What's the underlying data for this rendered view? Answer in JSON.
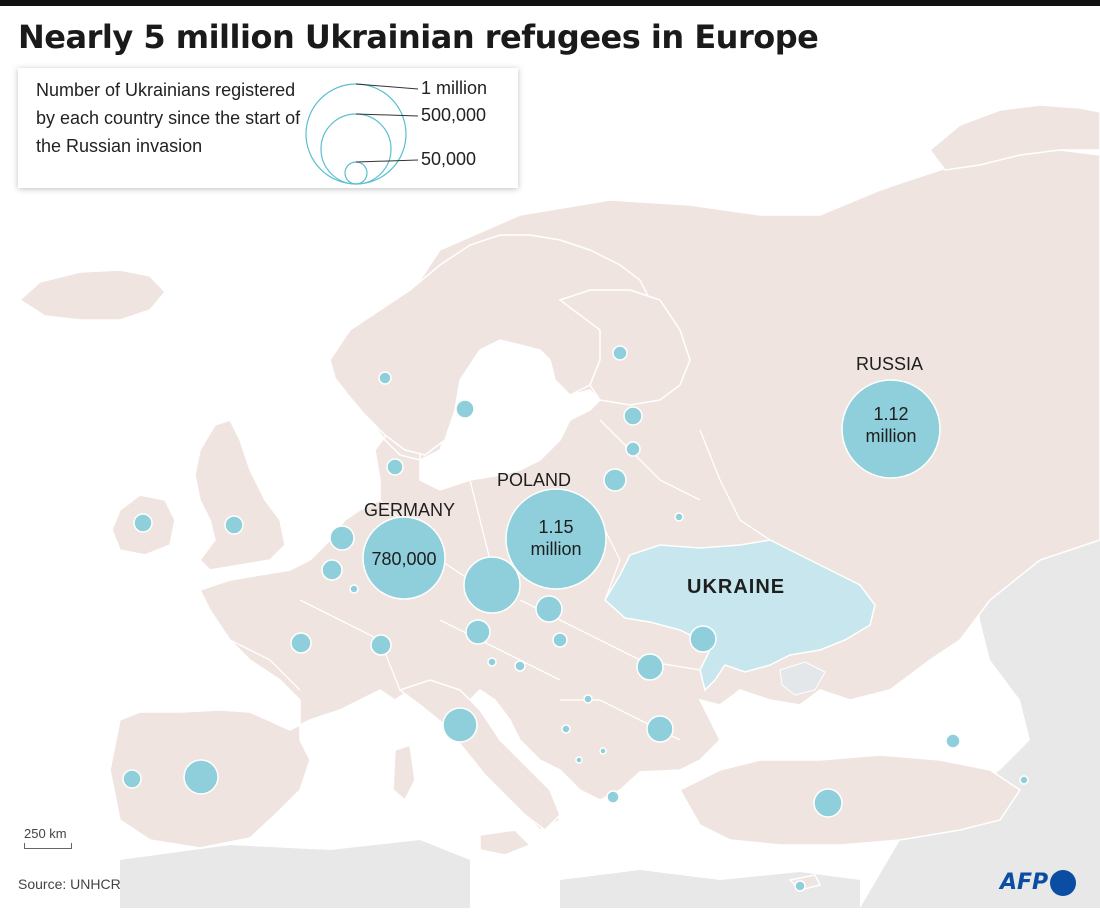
{
  "title": "Nearly 5 million Ukrainian refugees in Europe",
  "legend": {
    "description": "Number of Ukrainians registered by each country since the start of the Russian invasion",
    "sizes": [
      "1 million",
      "500,000",
      "50,000"
    ]
  },
  "labels": {
    "russia": "RUSSIA",
    "russia_value": "1.12 million",
    "poland": "POLAND",
    "poland_value": "1.15 million",
    "germany": "GERMANY",
    "germany_value": "780,000",
    "ukraine": "UKRAINE"
  },
  "scale": "250 km",
  "source": "Source: UNHCR",
  "logo": "AFP",
  "colors": {
    "land": "#efe4df",
    "land_border": "#ffffff",
    "non_europe_land": "#e8e8e8",
    "ukraine": "#c7e6ee",
    "bubble": "#8fcfdb",
    "bubble_stroke": "#ffffff",
    "sea": "#ffffff",
    "logo_blue": "#0a4da2"
  }
}
